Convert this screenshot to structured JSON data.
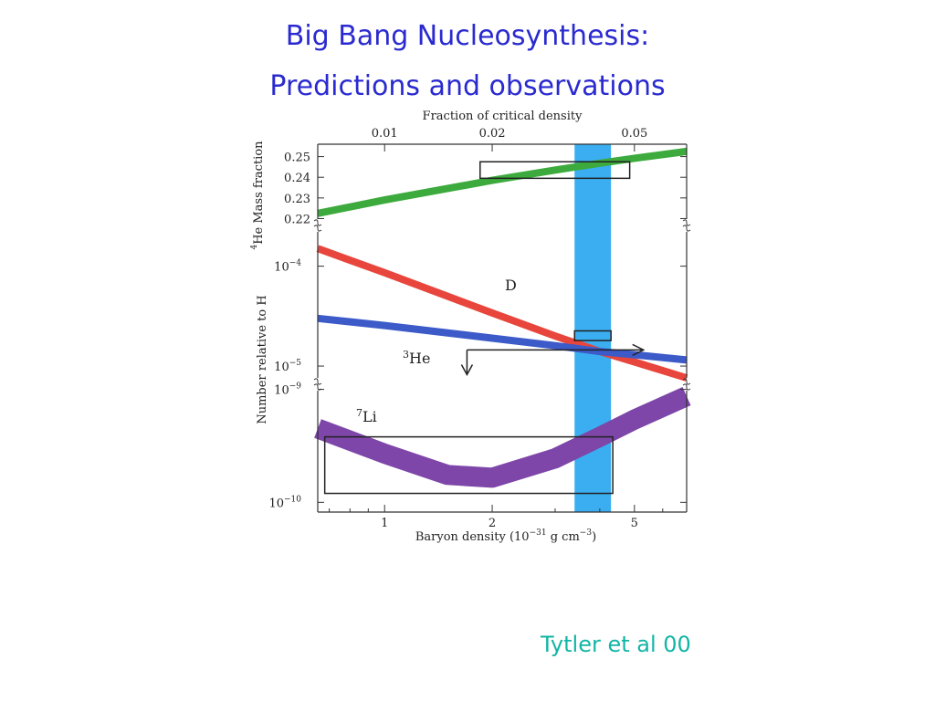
{
  "slide": {
    "title_line1": "Big Bang Nucleosynthesis:",
    "title_line2": "Predictions and observations",
    "credit": "Tytler et al 00"
  },
  "chart_data": {
    "type": "line",
    "xlabel_prefix": "Baryon density (10",
    "xlabel_exp": "−31",
    "xlabel_mid": " g cm",
    "xlabel_exp2": "−3",
    "xlabel_suffix": ")",
    "x_scale": "log",
    "xlim": [
      0.65,
      7.0
    ],
    "x_ticks": [
      {
        "value": 1,
        "label": "1"
      },
      {
        "value": 2,
        "label": "2"
      },
      {
        "value": 5,
        "label": "5"
      }
    ],
    "top_axis": {
      "label": "Fraction of critical density",
      "ticks": [
        {
          "x": 1.0,
          "label": "0.01"
        },
        {
          "x": 2.0,
          "label": "0.02"
        },
        {
          "x": 5.0,
          "label": "0.05"
        }
      ]
    },
    "panels": [
      {
        "name": "he4",
        "ylabel_sup": "4",
        "ylabel": "He Mass fraction",
        "ylim": [
          0.218,
          0.256
        ],
        "y_scale": "linear",
        "y_ticks": [
          {
            "value": 0.22,
            "label": "0.22"
          },
          {
            "value": 0.23,
            "label": "0.23"
          },
          {
            "value": 0.24,
            "label": "0.24"
          },
          {
            "value": 0.25,
            "label": "0.25"
          }
        ],
        "series": [
          {
            "name": "",
            "color": "#3caa3c",
            "x": [
              0.65,
              1.0,
              2.0,
              3.0,
              4.0,
              5.0,
              7.0
            ],
            "y": [
              0.2225,
              0.229,
              0.2385,
              0.2435,
              0.2468,
              0.2492,
              0.2525
            ]
          }
        ]
      },
      {
        "name": "ratio",
        "ylabel": "Number relative to H",
        "ylim": [
          7e-06,
          0.00024
        ],
        "y_scale": "log",
        "y_ticks": [
          {
            "value": 0.0001,
            "label_base": "10",
            "label_exp": "−4"
          },
          {
            "value": 1e-05,
            "label_base": "10",
            "label_exp": "−5"
          }
        ],
        "series": [
          {
            "name": "D",
            "color": "#e8463c",
            "x": [
              0.65,
              1.0,
              2.0,
              3.0,
              4.0,
              5.0,
              7.0
            ],
            "y": [
              0.00015,
              8.6e-05,
              3.4e-05,
              2e-05,
              1.4e-05,
              1.1e-05,
              7.6e-06
            ]
          },
          {
            "name": "3He",
            "label_sup": "3",
            "label_text": "He",
            "color": "#3c5ac8",
            "x": [
              0.65,
              1.0,
              2.0,
              3.0,
              4.0,
              5.0,
              7.0
            ],
            "y": [
              3e-05,
              2.55e-05,
              1.9e-05,
              1.6e-05,
              1.4e-05,
              1.3e-05,
              1.15e-05
            ]
          }
        ]
      },
      {
        "name": "li7",
        "ylim": [
          8.2e-11,
          1.05e-09
        ],
        "y_scale": "log",
        "y_ticks": [
          {
            "value": 1e-09,
            "label_base": "10",
            "label_exp": "−9"
          },
          {
            "value": 1e-10,
            "label_base": "10",
            "label_exp": "−10"
          }
        ],
        "series": [
          {
            "name": "7Li",
            "label_sup": "7",
            "label_text": "Li",
            "color": "#7d46a8",
            "x": [
              0.65,
              1.0,
              1.5,
              2.0,
              3.0,
              4.0,
              5.0,
              7.0
            ],
            "y": [
              4.5e-10,
              2.7e-10,
              1.75e-10,
              1.65e-10,
              2.45e-10,
              3.8e-10,
              5.4e-10,
              8.7e-10
            ]
          }
        ]
      }
    ],
    "observations": {
      "baryon_band_x": [
        3.4,
        4.3
      ],
      "band_color": "#3aaef0",
      "he4_box": {
        "x": [
          1.85,
          4.85
        ],
        "y": [
          0.2395,
          0.2475
        ]
      },
      "d_box": {
        "x": [
          3.4,
          4.3
        ],
        "y": [
          1.8e-05,
          2.25e-05
        ]
      },
      "d_arrow": {
        "x_start": 1.7,
        "x_end": 5.3,
        "y": 1.45e-05
      },
      "he3_limit": {
        "x": 1.7,
        "y_top": 1.45e-05,
        "y_bottom": 8.2e-06
      },
      "li_box": {
        "x": [
          0.68,
          4.35
        ],
        "y": [
          1.2e-10,
          3.8e-10
        ]
      }
    }
  }
}
